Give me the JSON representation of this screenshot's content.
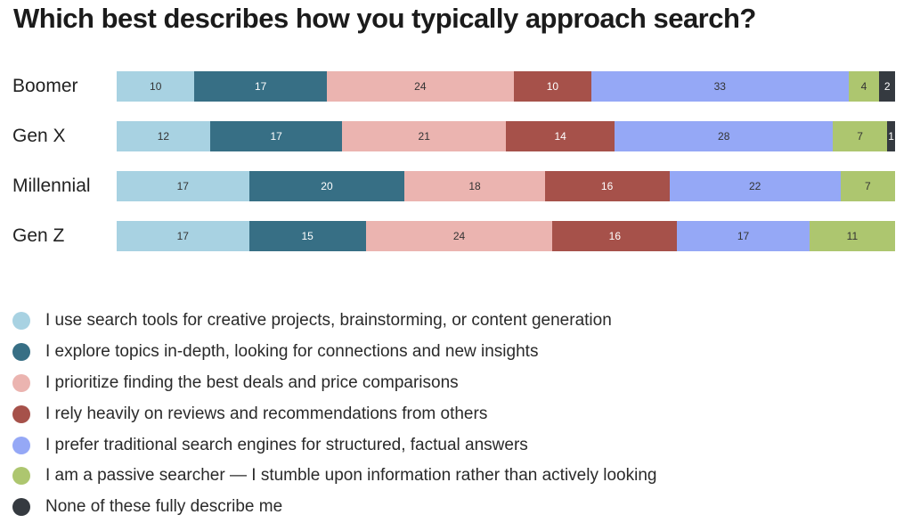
{
  "chart_data": {
    "type": "bar",
    "orientation": "horizontal",
    "stacked": true,
    "title": "Which best describes how you typically approach search?",
    "xlabel": "",
    "ylabel": "",
    "categories": [
      "Boomer",
      "Gen X",
      "Millennial",
      "Gen Z"
    ],
    "series": [
      {
        "name": "I use search tools for creative projects, brainstorming, or content generation",
        "color": "#a8d2e2",
        "text_color": "#333333",
        "values": [
          10,
          12,
          17,
          17
        ]
      },
      {
        "name": "I explore topics in-depth, looking for connections and new insights",
        "color": "#376f85",
        "text_color": "#ffffff",
        "values": [
          17,
          17,
          20,
          15
        ]
      },
      {
        "name": "I prioritize finding the best deals and price comparisons",
        "color": "#ebb4b0",
        "text_color": "#333333",
        "values": [
          24,
          21,
          18,
          24
        ]
      },
      {
        "name": "I rely heavily on reviews and recommendations from others",
        "color": "#a6514a",
        "text_color": "#ffffff",
        "values": [
          10,
          14,
          16,
          16
        ]
      },
      {
        "name": "I prefer traditional search engines for structured, factual answers",
        "color": "#95a8f6",
        "text_color": "#333333",
        "values": [
          33,
          28,
          22,
          17
        ]
      },
      {
        "name": "I am a passive searcher — I stumble upon information rather than actively looking",
        "color": "#adc66f",
        "text_color": "#333333",
        "values": [
          4,
          7,
          7,
          11
        ]
      },
      {
        "name": "None of these fully describe me",
        "color": "#353a40",
        "text_color": "#ffffff",
        "values": [
          2,
          1,
          0,
          0
        ]
      }
    ],
    "legend_position": "bottom",
    "grid": false
  }
}
